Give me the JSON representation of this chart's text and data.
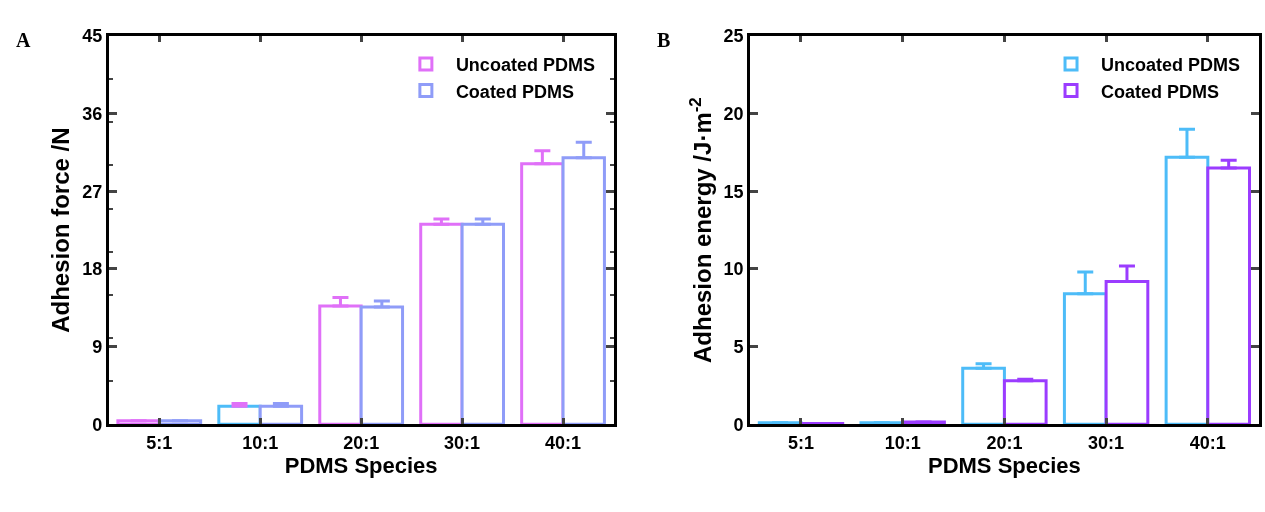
{
  "chart_data": [
    {
      "type": "bar",
      "annotations": [
        "A"
      ],
      "ylabel": "Adhesion force /N",
      "xlabel": "PDMS Species",
      "categories": [
        "5:1",
        "10:1",
        "20:1",
        "30:1",
        "40:1"
      ],
      "series": [
        {
          "name": "Uncoated PDMS",
          "color": "#e070f8",
          "colors": [
            "#e070f8",
            "#4dbcf8",
            "#e070f8",
            "#e070f8",
            "#e070f8"
          ],
          "values": [
            0.4,
            2.1,
            13.7,
            23.2,
            30.2
          ],
          "errors": [
            null,
            [
              2.1,
              2.4
            ],
            [
              13.7,
              14.7
            ],
            [
              23.2,
              23.8
            ],
            [
              30.2,
              31.7
            ]
          ]
        },
        {
          "name": "Coated PDMS",
          "color": "#8f9cf8",
          "values": [
            0.4,
            2.1,
            13.6,
            23.2,
            30.9
          ],
          "errors": [
            null,
            [
              2.1,
              2.4
            ],
            [
              13.6,
              14.3
            ],
            [
              23.2,
              23.8
            ],
            [
              30.9,
              32.7
            ]
          ]
        }
      ],
      "ylim": [
        0,
        45
      ],
      "yticks": [
        0,
        9,
        18,
        27,
        36,
        45
      ],
      "legend": "top right"
    },
    {
      "type": "bar",
      "annotations": [
        "B"
      ],
      "ylabel": "Adhesion energy /J·m$^{-2}$",
      "xlabel": "PDMS Species",
      "categories": [
        "5:1",
        "10:1",
        "20:1",
        "30:1",
        "40:1"
      ],
      "series": [
        {
          "name": "Uncoated PDMS",
          "color": "#4dbcf8",
          "values": [
            0.1,
            0.1,
            3.6,
            8.4,
            17.2
          ],
          "errors": [
            [
              0.1,
              0.1
            ],
            [
              0.1,
              0.1
            ],
            [
              3.6,
              3.9
            ],
            [
              8.4,
              9.8
            ],
            [
              17.2,
              19.0
            ]
          ]
        },
        {
          "name": "Coated PDMS",
          "color": "#9b3cff",
          "values": [
            0.05,
            0.15,
            2.8,
            9.2,
            16.5
          ],
          "errors": [
            [
              0.05,
              0.05
            ],
            [
              0.15,
              0.15
            ],
            [
              2.8,
              2.9
            ],
            [
              9.2,
              10.2
            ],
            [
              16.5,
              17.0
            ]
          ]
        }
      ],
      "ylim": [
        0,
        25
      ],
      "yticks": [
        0,
        5,
        10,
        15,
        20,
        25
      ],
      "legend": "top right"
    }
  ]
}
